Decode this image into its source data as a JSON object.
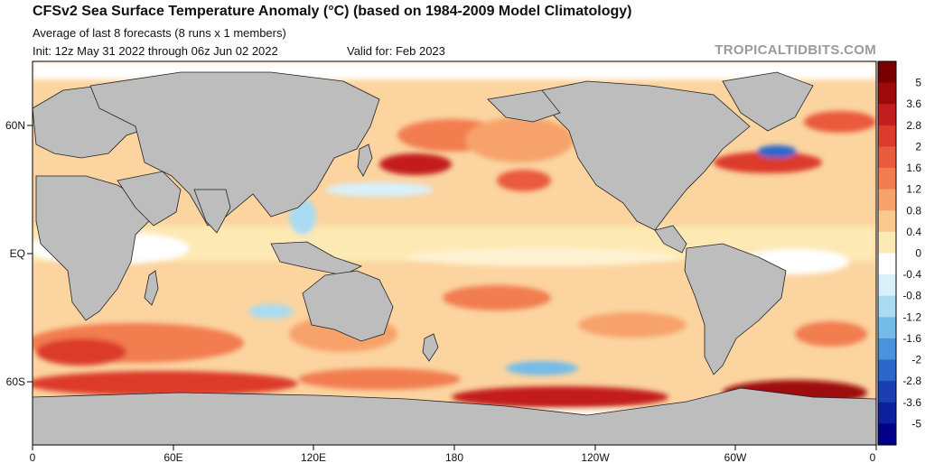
{
  "header": {
    "title": "CFSv2 Sea Surface Temperature Anomaly (°C) (based on 1984-2009 Model Climatology)",
    "subtitle": "Average of last 8 forecasts (8 runs x 1 members)",
    "init": "Init: 12z May 31 2022 through 06z Jun 02 2022",
    "valid": "Valid for: Feb 2023",
    "brand": "TROPICALTIDBITS.COM"
  },
  "map": {
    "lat_labels": [
      "60N",
      "EQ",
      "60S"
    ],
    "lon_labels": [
      "0",
      "60E",
      "120E",
      "180",
      "120W",
      "60W",
      "0"
    ],
    "land_color": "#bdbdbd",
    "border_color": "#222222"
  },
  "colorbar": {
    "labels": [
      "5",
      "3.6",
      "2.8",
      "2",
      "1.6",
      "1.2",
      "0.8",
      "0.4",
      "0",
      "-0.4",
      "-0.8",
      "-1.2",
      "-1.6",
      "-2",
      "-2.8",
      "-3.6",
      "-5"
    ],
    "colors": [
      "#7a0000",
      "#9e0a0a",
      "#c21e1e",
      "#dc3b2b",
      "#ea5a3c",
      "#f27d4f",
      "#f7a26a",
      "#fbc98e",
      "#fde9b3",
      "#ffffff",
      "#d8f0fa",
      "#a9dcf2",
      "#74bbe8",
      "#4a92dc",
      "#2a66cc",
      "#1a3fb5",
      "#0c1f9e",
      "#00008a"
    ]
  }
}
